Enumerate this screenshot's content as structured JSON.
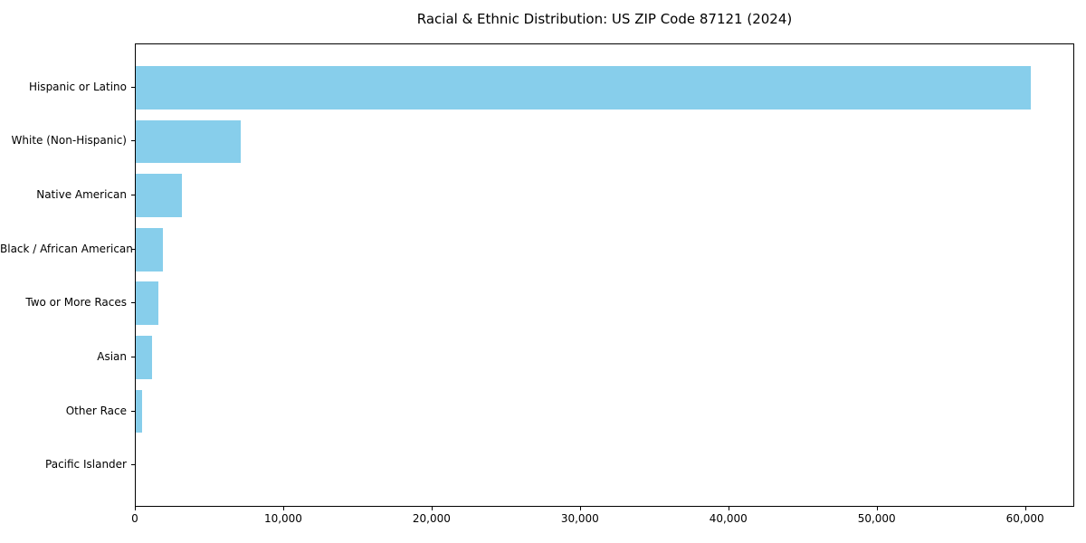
{
  "chart_data": {
    "type": "bar",
    "orientation": "horizontal",
    "title": "Racial & Ethnic Distribution: US ZIP Code 87121 (2024)",
    "categories": [
      "Hispanic or Latino",
      "White (Non-Hispanic)",
      "Native American",
      "Black / African American",
      "Two or More Races",
      "Asian",
      "Other Race",
      "Pacific Islander"
    ],
    "values": [
      60300,
      7100,
      3100,
      1800,
      1500,
      1100,
      400,
      0
    ],
    "xlabel": "",
    "ylabel": "",
    "xlim": [
      0,
      63315
    ],
    "x_ticks": [
      0,
      10000,
      20000,
      30000,
      40000,
      50000,
      60000
    ],
    "x_tick_labels": [
      "0",
      "10,000",
      "20,000",
      "30,000",
      "40,000",
      "50,000",
      "60,000"
    ],
    "bar_color": "#87CEEB",
    "axis_color": "#000000",
    "text_color": "#000000",
    "background_color": "#ffffff",
    "grid": false,
    "legend_position": "none"
  }
}
